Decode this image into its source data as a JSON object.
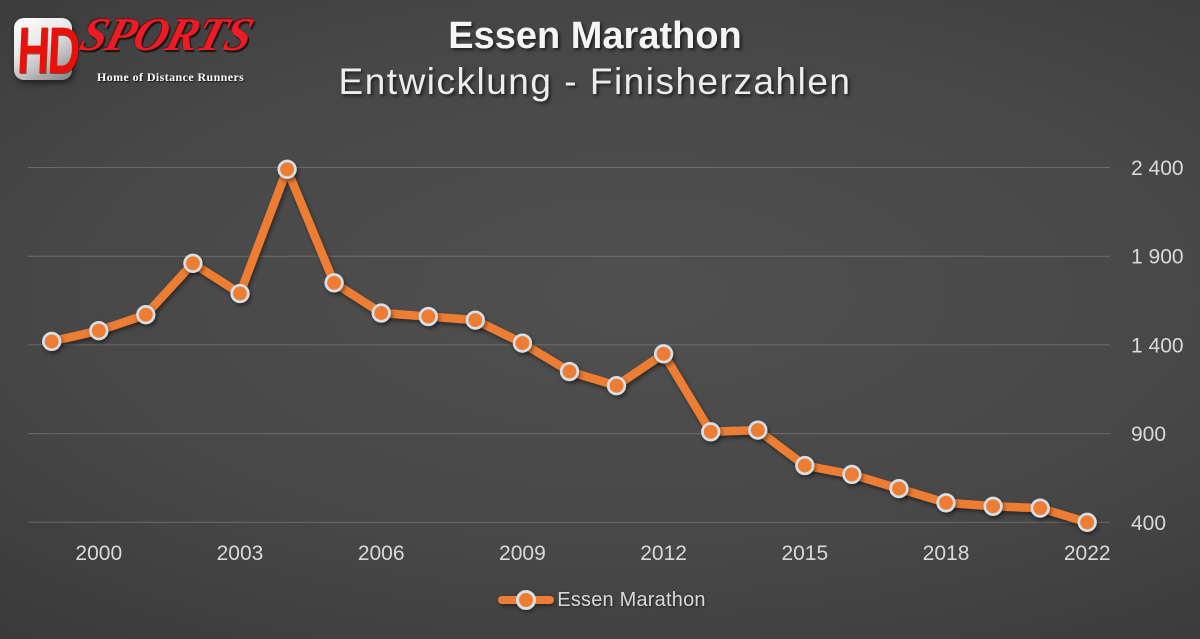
{
  "logo": {
    "hd": "HD",
    "sports": "SPORTS",
    "tagline": "Home of Distance Runners"
  },
  "header": {
    "title": "Essen Marathon",
    "subtitle": "Entwicklung - Finisherzahlen"
  },
  "legend": {
    "label": "Essen Marathon"
  },
  "colors": {
    "accent_orange": "#ED7D31",
    "marker_ring": "#D8DEE6",
    "gridline": "#8A8A8A",
    "axis_label": "#D9D9D9",
    "title_text": "#F5F5F5",
    "logo_red": "#EC1C24"
  },
  "chart_data": {
    "type": "line",
    "title": "Essen Marathon - Entwicklung - Finisherzahlen",
    "categories": [
      "1999",
      "2000",
      "2001",
      "2002",
      "2003",
      "2004",
      "2005",
      "2006",
      "2007",
      "2008",
      "2009",
      "2010",
      "2011",
      "2012",
      "2013",
      "2014",
      "2015",
      "2016",
      "2017",
      "2018",
      "2019",
      "2021",
      "2022"
    ],
    "series": [
      {
        "name": "Essen Marathon",
        "color": "#ED7D31",
        "values": [
          1420,
          1480,
          1570,
          1860,
          1690,
          2390,
          1750,
          1580,
          1560,
          1540,
          1410,
          1250,
          1170,
          1350,
          910,
          920,
          720,
          670,
          590,
          510,
          490,
          480,
          400
        ]
      }
    ],
    "x_tick_labels": [
      "2000",
      "2003",
      "2006",
      "2009",
      "2012",
      "2015",
      "2018",
      "2022"
    ],
    "y_ticks": [
      400,
      900,
      1400,
      1900,
      2400
    ],
    "ylim": [
      400,
      2400
    ],
    "grid": "horizontal",
    "y_axis_side": "right",
    "legend_position": "bottom"
  }
}
